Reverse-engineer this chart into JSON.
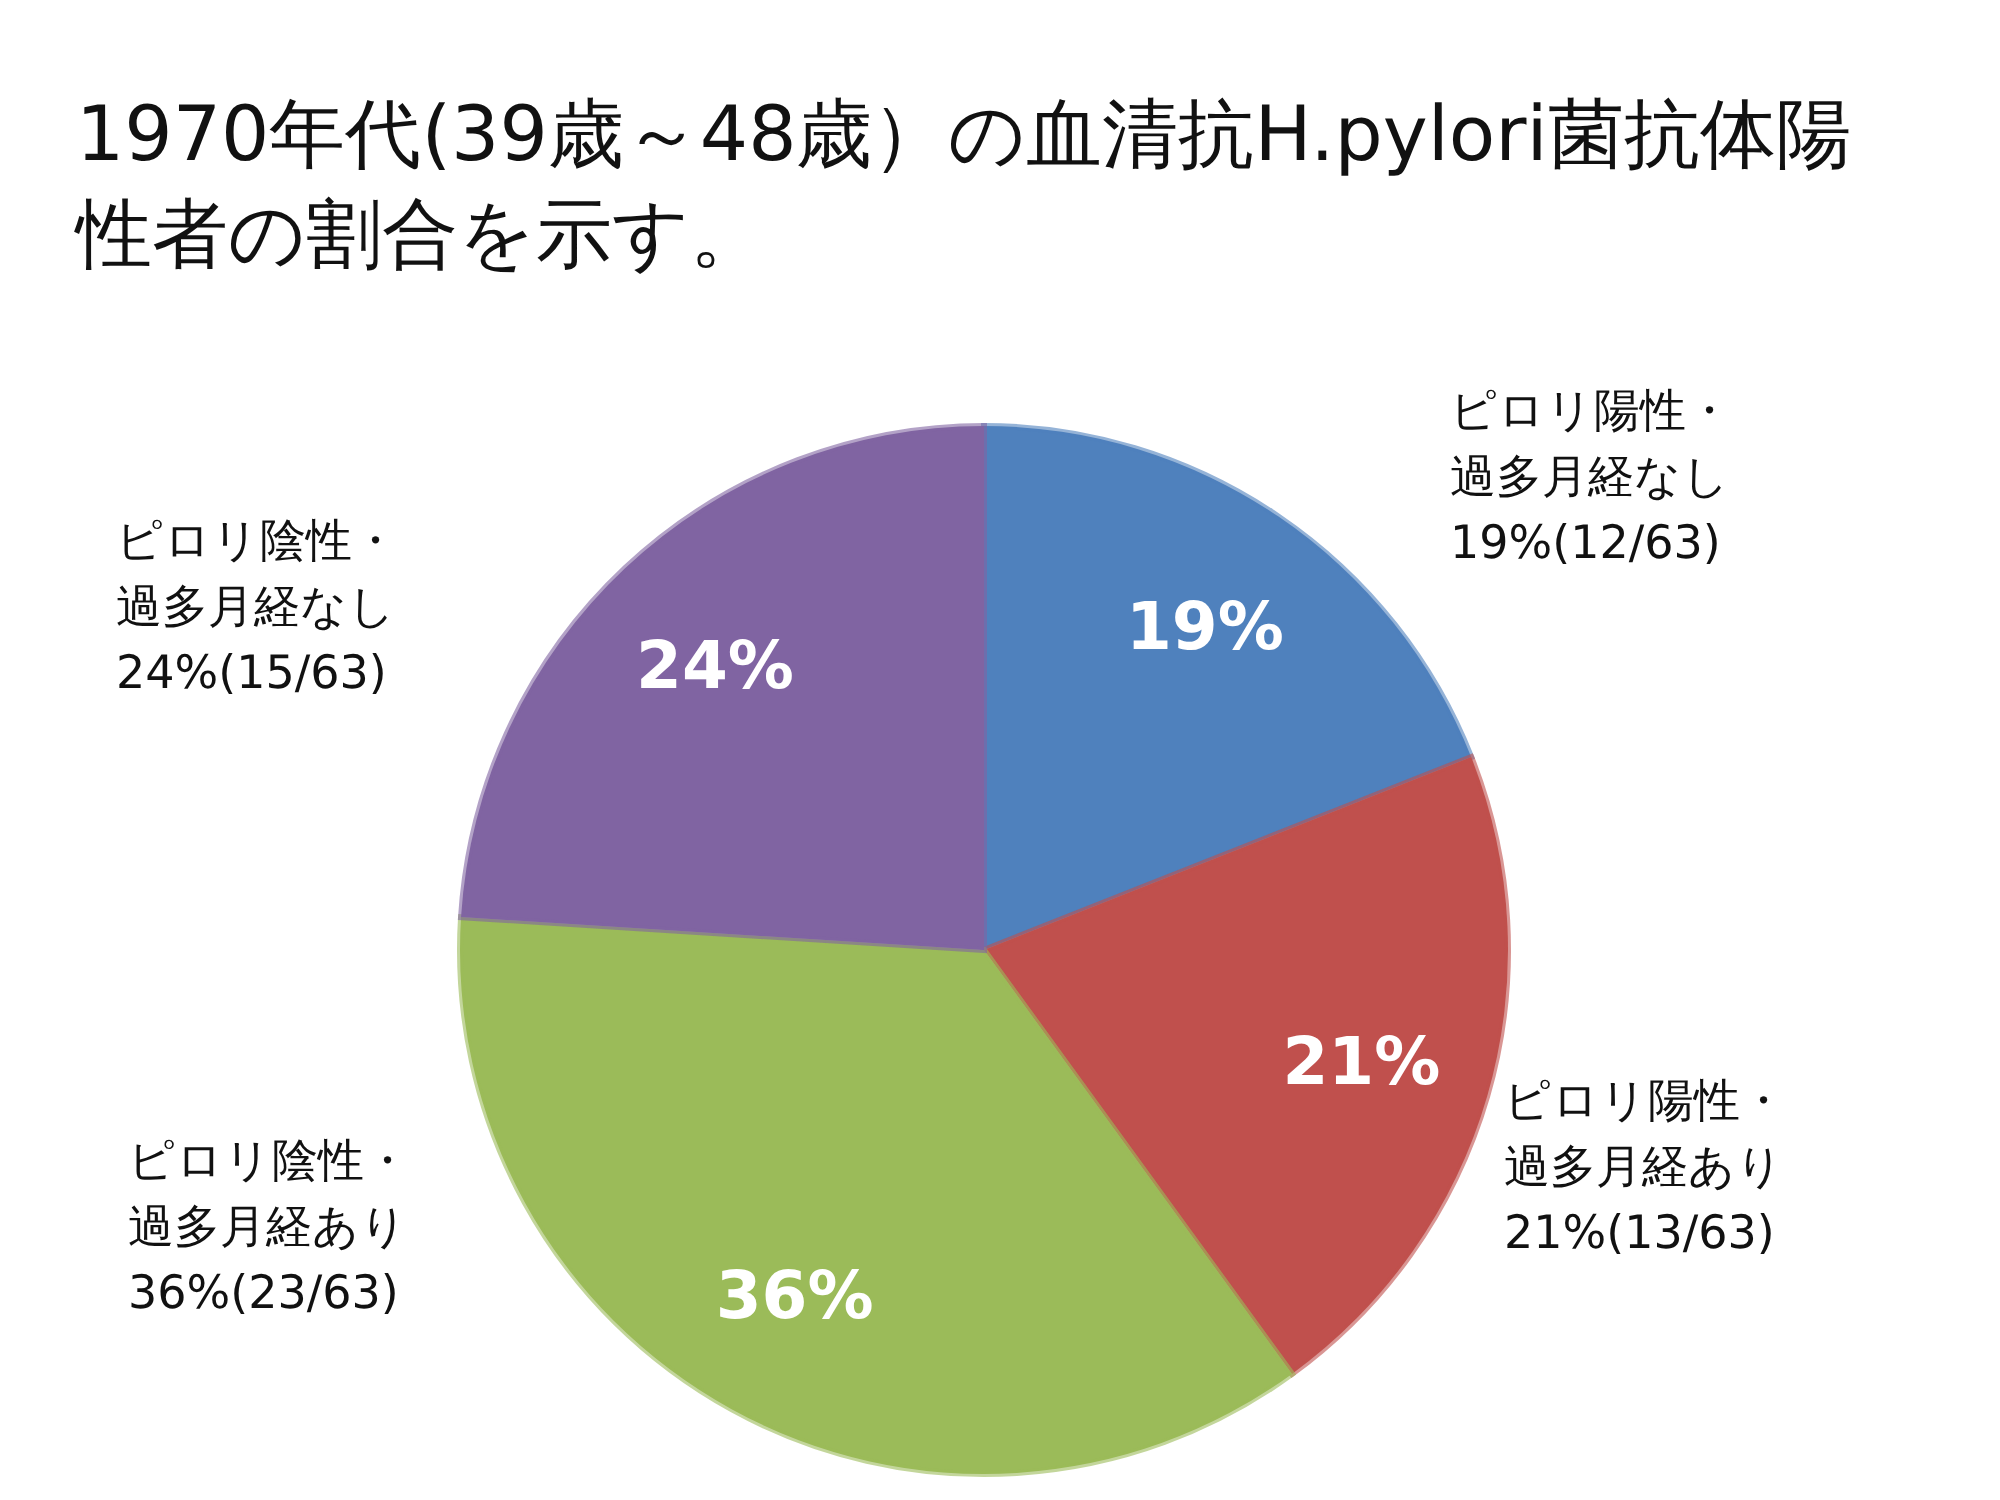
{
  "chart_data": {
    "type": "pie",
    "title": "1970年代(39歳～48歳）の血清抗H.pylori菌抗体陽性者の割合を示す。",
    "categories": [
      "ピロリ陽性・過多月経なし",
      "ピロリ陽性・過多月経あり",
      "ピロリ陰性・過多月経あり",
      "ピロリ陰性・過多月経なし"
    ],
    "values": [
      19,
      21,
      36,
      24
    ],
    "colors": [
      "#4f81bd",
      "#c0504d",
      "#9bbb59",
      "#8064a2"
    ],
    "value_labels": [
      "19%",
      "21%",
      "36%",
      "24%"
    ],
    "annotations": [
      "19%(12/63)",
      "21%(13/63)",
      "36%(23/63)",
      "24%(15/63)"
    ]
  }
}
